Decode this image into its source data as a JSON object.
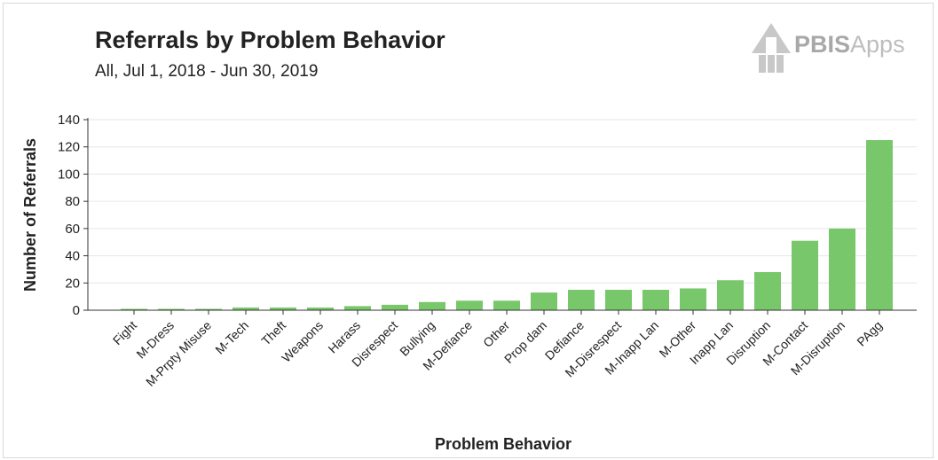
{
  "header": {
    "title": "Referrals by Problem Behavior",
    "subtitle": "All, Jul 1, 2018 - Jun 30, 2019"
  },
  "logo": {
    "text_strong": "PBIS",
    "text_light": "Apps",
    "icon": "pbis-building-icon"
  },
  "colors": {
    "bar": "#79c76b",
    "grid": "#e6e6e6",
    "axis": "#333333",
    "text": "#222222"
  },
  "chart_data": {
    "type": "bar",
    "title": "Referrals by Problem Behavior",
    "subtitle": "All, Jul 1, 2018 - Jun 30, 2019",
    "xlabel": "Problem Behavior",
    "ylabel": "Number of Referrals",
    "ylim": [
      0,
      140
    ],
    "yticks": [
      0,
      20,
      40,
      60,
      80,
      100,
      120,
      140
    ],
    "grid": true,
    "legend": "none",
    "categories": [
      "Fight",
      "M-Dress",
      "M-Prpty Misuse",
      "M-Tech",
      "Theft",
      "Weapons",
      "Harass",
      "Disrespect",
      "Bullying",
      "M-Defiance",
      "Other",
      "Prop dam",
      "Defiance",
      "M-Disrespect",
      "M-Inapp Lan",
      "M-Other",
      "Inapp Lan",
      "Disruption",
      "M-Contact",
      "M-Disruption",
      "PAgg"
    ],
    "values": [
      1,
      1,
      1,
      2,
      2,
      2,
      3,
      4,
      6,
      7,
      7,
      13,
      15,
      15,
      15,
      16,
      22,
      28,
      51,
      60,
      125
    ]
  }
}
